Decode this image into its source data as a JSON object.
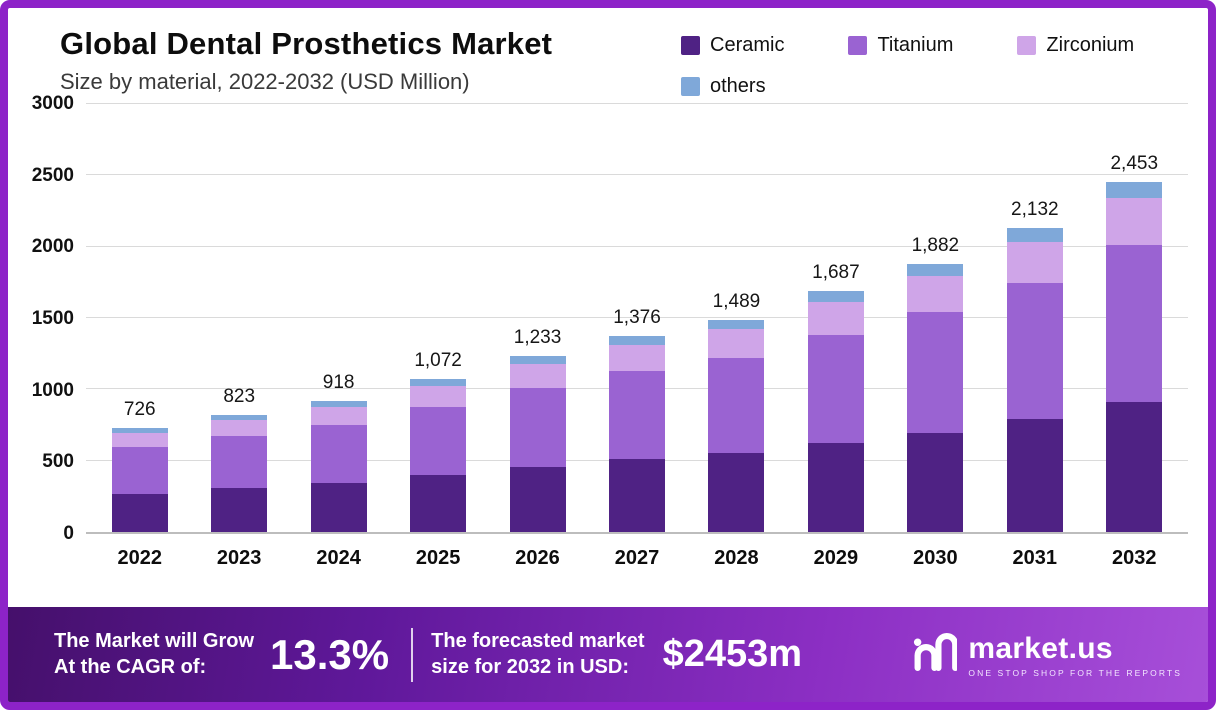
{
  "header": {
    "title": "Global Dental Prosthetics Market",
    "subtitle": "Size by material, 2022-2032 (USD Million)"
  },
  "legend": [
    {
      "label": "Ceramic",
      "color": "#4f2284"
    },
    {
      "label": "Titanium",
      "color": "#9a63d2"
    },
    {
      "label": "Zirconium",
      "color": "#cfa5e8"
    },
    {
      "label": "others",
      "color": "#7fa8d9"
    }
  ],
  "chart_data": {
    "type": "bar",
    "stacked": true,
    "title": "Global Dental Prosthetics Market Size by material, 2022-2032 (USD Million)",
    "categories": [
      "2022",
      "2023",
      "2024",
      "2025",
      "2026",
      "2027",
      "2028",
      "2029",
      "2030",
      "2031",
      "2032"
    ],
    "series": [
      {
        "name": "Ceramic",
        "color": "#4f2284",
        "values": [
          269,
          305,
          340,
          397,
          456,
          509,
          551,
          624,
          696,
          789,
          908
        ]
      },
      {
        "name": "Titanium",
        "color": "#9a63d2",
        "values": [
          327,
          370,
          413,
          482,
          555,
          619,
          670,
          759,
          847,
          959,
          1104
        ]
      },
      {
        "name": "Zirconium",
        "color": "#cfa5e8",
        "values": [
          98,
          111,
          124,
          145,
          166,
          186,
          201,
          228,
          254,
          288,
          331
        ]
      },
      {
        "name": "others",
        "color": "#7fa8d9",
        "values": [
          32,
          37,
          41,
          48,
          56,
          62,
          67,
          76,
          85,
          96,
          110
        ]
      }
    ],
    "totals": [
      726,
      823,
      918,
      1072,
      1233,
      1376,
      1489,
      1687,
      1882,
      2132,
      2453
    ],
    "total_labels": [
      "726",
      "823",
      "918",
      "1,072",
      "1,233",
      "1,376",
      "1,489",
      "1,687",
      "1,882",
      "2,132",
      "2,453"
    ],
    "ylim": [
      0,
      3000
    ],
    "yticks": [
      0,
      500,
      1000,
      1500,
      2000,
      2500,
      3000
    ],
    "grid": true,
    "legend_position": "top-right"
  },
  "footer": {
    "cagr_line1": "The Market will Grow",
    "cagr_line2": "At the CAGR of:",
    "cagr_value": "13.3%",
    "forecast_line1": "The forecasted market",
    "forecast_line2": "size for 2032 in USD:",
    "forecast_value": "$2453m",
    "logo_text": "market.us",
    "logo_tagline": "ONE STOP SHOP FOR THE REPORTS"
  },
  "theme": {
    "frame_border": "#8d23c8",
    "footer_gradient_start": "#45106b",
    "footer_gradient_end": "#a74fd9",
    "grid_color": "#dadada"
  }
}
